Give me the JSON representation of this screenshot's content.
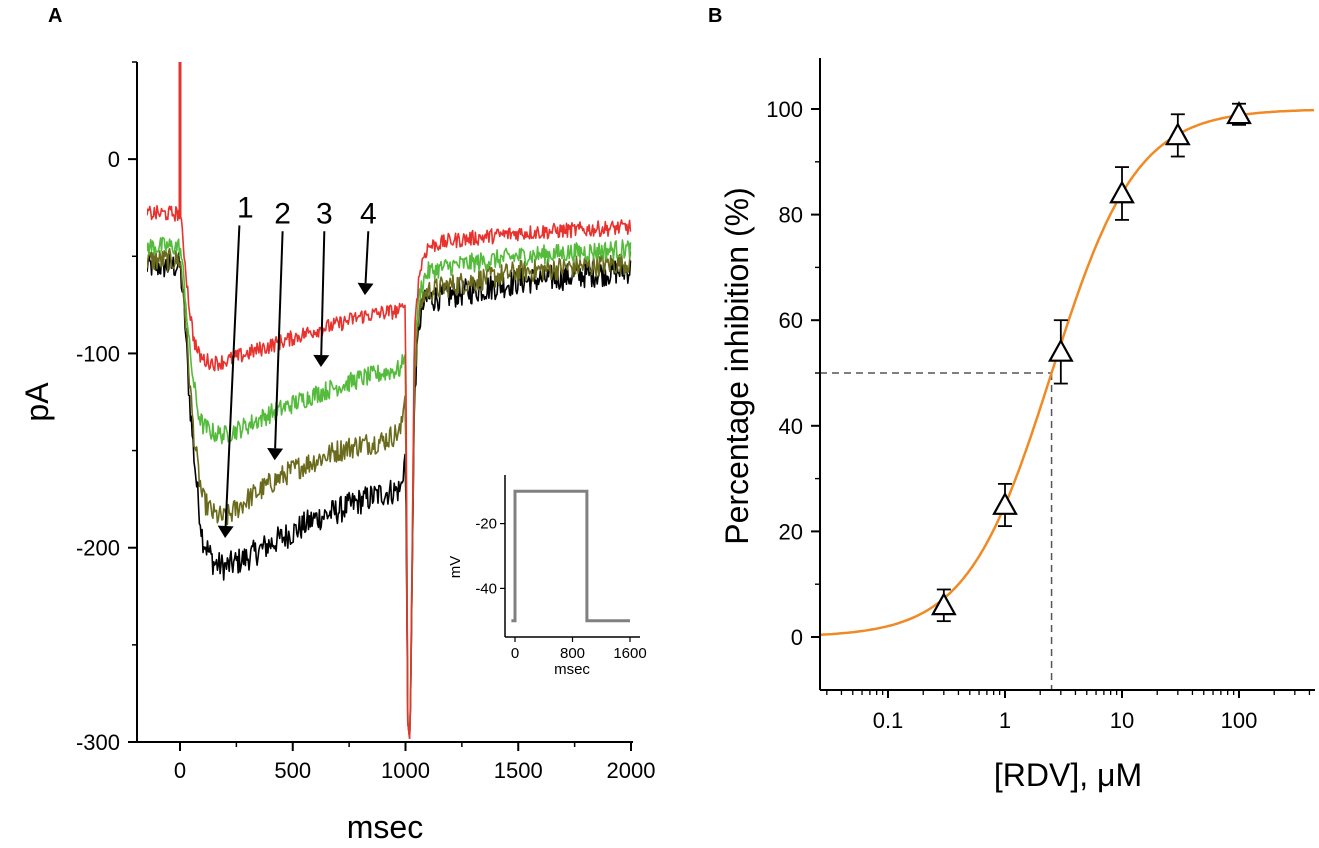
{
  "chart_data": [
    {
      "panel": "A",
      "type": "line",
      "title": "",
      "xlabel": "msec",
      "ylabel": "pA",
      "xlim": [
        -150,
        2000
      ],
      "ylim": [
        -300,
        50
      ],
      "xticks": [
        0,
        500,
        1000,
        1500,
        2000
      ],
      "yticks": [
        0,
        -100,
        -200,
        -300
      ],
      "grid": false,
      "series": [
        {
          "name": "1",
          "color": "#000000",
          "x": [
            -150,
            0,
            20,
            40,
            60,
            80,
            100,
            150,
            200,
            300,
            400,
            500,
            600,
            700,
            800,
            900,
            980,
            1000,
            1010,
            1020,
            1040,
            1060,
            1080,
            1100,
            1200,
            1500,
            2000
          ],
          "y": [
            -55,
            -55,
            -80,
            -120,
            -150,
            -175,
            -195,
            -208,
            -210,
            -205,
            -198,
            -192,
            -185,
            -181,
            -176,
            -172,
            -170,
            -150,
            -290,
            -300,
            -120,
            -85,
            -75,
            -72,
            -70,
            -63,
            -57
          ],
          "noise": 7
        },
        {
          "name": "2",
          "color": "#6b6b1e",
          "x": [
            -150,
            0,
            20,
            40,
            60,
            80,
            100,
            150,
            200,
            300,
            400,
            500,
            600,
            700,
            800,
            900,
            980,
            1000,
            1010,
            1020,
            1040,
            1060,
            1080,
            1100,
            1200,
            1500,
            2000
          ],
          "y": [
            -52,
            -52,
            -75,
            -110,
            -140,
            -160,
            -175,
            -183,
            -185,
            -175,
            -167,
            -160,
            -155,
            -150,
            -147,
            -145,
            -140,
            -120,
            -290,
            -300,
            -110,
            -80,
            -70,
            -68,
            -65,
            -58,
            -53
          ],
          "noise": 6
        },
        {
          "name": "3",
          "color": "#55bb3c",
          "x": [
            -150,
            0,
            20,
            40,
            60,
            80,
            100,
            150,
            200,
            300,
            400,
            500,
            600,
            700,
            800,
            900,
            980,
            1000,
            1010,
            1020,
            1040,
            1060,
            1080,
            1100,
            1200,
            1500,
            2000
          ],
          "y": [
            -45,
            -45,
            -65,
            -95,
            -115,
            -130,
            -137,
            -141,
            -142,
            -137,
            -131,
            -126,
            -121,
            -117,
            -113,
            -110,
            -108,
            -100,
            -290,
            -300,
            -95,
            -70,
            -62,
            -58,
            -55,
            -50,
            -46
          ],
          "noise": 5
        },
        {
          "name": "4",
          "color": "#e8322e",
          "x": [
            -150,
            0,
            20,
            40,
            60,
            80,
            100,
            150,
            200,
            300,
            400,
            500,
            600,
            700,
            800,
            900,
            980,
            1000,
            1010,
            1020,
            1040,
            1060,
            1080,
            1100,
            1200,
            1500,
            2000
          ],
          "y": [
            -28,
            -28,
            -50,
            -75,
            -92,
            -100,
            -103,
            -105,
            -104,
            -100,
            -96,
            -92,
            -88,
            -85,
            -81,
            -79,
            -78,
            -75,
            -290,
            -300,
            -85,
            -60,
            -50,
            -45,
            -42,
            -38,
            -35
          ],
          "noise": 4
        }
      ],
      "annotations": [
        {
          "text": "1",
          "text_xy": [
            290,
            -30
          ],
          "arrow_to": [
            200,
            -195
          ]
        },
        {
          "text": "2",
          "text_xy": [
            455,
            -33
          ],
          "arrow_to": [
            420,
            -155
          ]
        },
        {
          "text": "3",
          "text_xy": [
            640,
            -33
          ],
          "arrow_to": [
            625,
            -107
          ]
        },
        {
          "text": "4",
          "text_xy": [
            835,
            -33
          ],
          "arrow_to": [
            820,
            -70
          ]
        }
      ],
      "inset": {
        "type": "line",
        "xlabel": "msec",
        "ylabel": "mV",
        "xlim": [
          -80,
          1650
        ],
        "ylim": [
          -55,
          -5
        ],
        "xticks": [
          0,
          800,
          1600
        ],
        "yticks": [
          -20,
          -40
        ],
        "series": [
          {
            "name": "voltage step",
            "color": "#808080",
            "x": [
              -50,
              0,
              0,
              1000,
              1000,
              1600
            ],
            "y": [
              -50,
              -50,
              -10,
              -10,
              -50,
              -50
            ]
          }
        ]
      }
    },
    {
      "panel": "B",
      "type": "scatter",
      "title": "",
      "xlabel": "[RDV], μM",
      "ylabel": "Percentage inhibition (%)",
      "xscale": "log",
      "xlim": [
        0.02,
        500
      ],
      "ylim": [
        -10,
        110
      ],
      "xticks": [
        0.1,
        1,
        10,
        100
      ],
      "xtick_labels": [
        "0.1",
        "1",
        "10",
        "100"
      ],
      "yticks": [
        0,
        20,
        40,
        60,
        80,
        100
      ],
      "grid": false,
      "points": {
        "x": [
          0.3,
          1,
          3,
          10,
          30,
          100
        ],
        "y": [
          6,
          25,
          54,
          84,
          95,
          99
        ],
        "err": [
          3,
          4,
          6,
          5,
          4,
          2
        ],
        "marker": "open-triangle"
      },
      "fit": {
        "type": "hill",
        "ic50": 2.5,
        "hill_coefficient": 1.2,
        "max": 100,
        "color": "#ef8a24"
      },
      "reference_lines": {
        "ic50_x": 2.5,
        "half_inhibition_y": 50,
        "style": "dashed"
      }
    }
  ],
  "labels": {
    "panel_a": "A",
    "panel_b": "B",
    "a_ylabel": "pA",
    "a_xlabel": "msec",
    "inset_ylabel": "mV",
    "inset_xlabel": "msec",
    "b_ylabel": "Percentage inhibition (%)",
    "b_xlabel": "[RDV], μM"
  }
}
